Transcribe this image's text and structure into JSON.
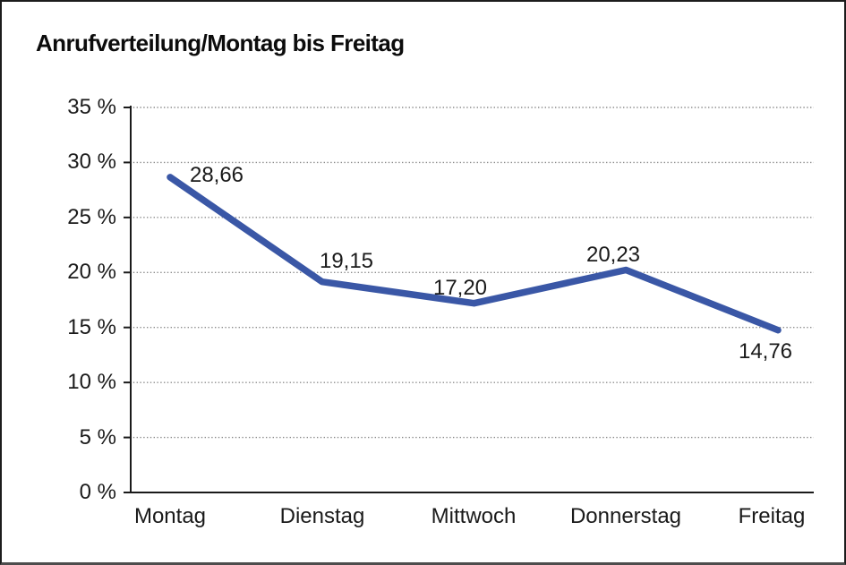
{
  "window": {
    "title": "Anrufverteilung/Montag bis Freitag"
  },
  "chart_data": {
    "type": "line",
    "title": "Anrufverteilung/Montag bis Freitag",
    "categories": [
      "Montag",
      "Dienstag",
      "Mittwoch",
      "Donnerstag",
      "Freitag"
    ],
    "values": [
      28.66,
      19.15,
      17.2,
      20.23,
      14.76
    ],
    "point_labels": [
      "28,66",
      "19,15",
      "17,20",
      "20,23",
      "14,76"
    ],
    "point_label_positions": [
      "right-of-point",
      "above-point",
      "above-point",
      "above-point",
      "below-point"
    ],
    "yticks": [
      {
        "value": 35,
        "label": "35 %"
      },
      {
        "value": 30,
        "label": "30 %"
      },
      {
        "value": 25,
        "label": "25 %"
      },
      {
        "value": 20,
        "label": "20 %"
      },
      {
        "value": 15,
        "label": "15 %"
      },
      {
        "value": 10,
        "label": "10 %"
      },
      {
        "value": 5,
        "label": "5 %"
      },
      {
        "value": 0,
        "label": "0 %"
      }
    ],
    "ylim": [
      0,
      35
    ],
    "xlabel": "",
    "ylabel": "",
    "legend": "none",
    "grid": "horizontal-dotted",
    "colors": {
      "line": "#3A57A6",
      "axis": "#1A1A1A",
      "grid": "#8C8C8C",
      "text": "#1A1A1A"
    }
  }
}
